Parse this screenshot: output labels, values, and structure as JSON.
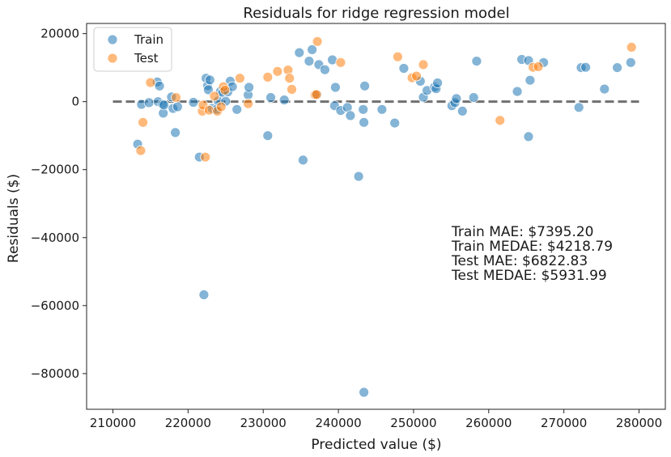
{
  "chart_data": {
    "type": "scatter",
    "title": "Residuals for ridge regression model",
    "xlabel": "Predicted value ($)",
    "ylabel": "Residuals ($)",
    "xlim": [
      206500,
      283500
    ],
    "ylim": [
      -90500,
      23000
    ],
    "x_ticks": [
      210000,
      220000,
      230000,
      240000,
      250000,
      260000,
      270000,
      280000
    ],
    "x_tick_labels": [
      "210000",
      "220000",
      "230000",
      "240000",
      "250000",
      "260000",
      "270000",
      "280000"
    ],
    "y_ticks": [
      20000,
      0,
      -20000,
      -40000,
      -60000,
      -80000
    ],
    "y_tick_labels": [
      "20000",
      "0",
      "−20000",
      "−40000",
      "−60000",
      "−80000"
    ],
    "grid": false,
    "legend_position": "top-left",
    "zero_line": {
      "y": 0,
      "x_range": [
        210000,
        280000
      ],
      "style": "dashed",
      "color": "#707070"
    },
    "series": [
      {
        "name": "Train",
        "color": "#1f77b4",
        "points": [
          [
            213300,
            -12500
          ],
          [
            213800,
            -800
          ],
          [
            214800,
            -300
          ],
          [
            215900,
            5800
          ],
          [
            216200,
            4600
          ],
          [
            216000,
            0
          ],
          [
            216600,
            -800
          ],
          [
            216700,
            -3400
          ],
          [
            216800,
            -1000
          ],
          [
            217800,
            1400
          ],
          [
            218000,
            -2000
          ],
          [
            218300,
            -9100
          ],
          [
            218600,
            -1500
          ],
          [
            220700,
            -200
          ],
          [
            221500,
            -16300
          ],
          [
            222100,
            -56800
          ],
          [
            222400,
            6900
          ],
          [
            222600,
            4700
          ],
          [
            222700,
            3500
          ],
          [
            222900,
            6400
          ],
          [
            223200,
            -2000
          ],
          [
            223800,
            -2300
          ],
          [
            224000,
            200
          ],
          [
            224300,
            3000
          ],
          [
            224600,
            2700
          ],
          [
            225000,
            100
          ],
          [
            225300,
            2900
          ],
          [
            225600,
            6000
          ],
          [
            225900,
            4400
          ],
          [
            226500,
            -2300
          ],
          [
            228000,
            2000
          ],
          [
            228100,
            4200
          ],
          [
            230600,
            -10000
          ],
          [
            231000,
            1200
          ],
          [
            232800,
            500
          ],
          [
            234800,
            14400
          ],
          [
            235300,
            -17200
          ],
          [
            236100,
            11900
          ],
          [
            236500,
            15300
          ],
          [
            237100,
            2000
          ],
          [
            237400,
            10900
          ],
          [
            238200,
            9400
          ],
          [
            239200,
            12300
          ],
          [
            239600,
            4200
          ],
          [
            239500,
            -1200
          ],
          [
            240300,
            -2600
          ],
          [
            241200,
            -1700
          ],
          [
            241600,
            -4100
          ],
          [
            242700,
            -22000
          ],
          [
            243300,
            -2300
          ],
          [
            243400,
            -6100
          ],
          [
            243500,
            4600
          ],
          [
            243400,
            -85500
          ],
          [
            245800,
            -2300
          ],
          [
            247500,
            -6300
          ],
          [
            248700,
            9800
          ],
          [
            250900,
            6000
          ],
          [
            251300,
            1300
          ],
          [
            251800,
            3300
          ],
          [
            252800,
            4300
          ],
          [
            253000,
            3800
          ],
          [
            253200,
            5500
          ],
          [
            255100,
            -1200
          ],
          [
            255500,
            -300
          ],
          [
            255700,
            900
          ],
          [
            256500,
            -2800
          ],
          [
            258000,
            1200
          ],
          [
            258400,
            11900
          ],
          [
            263800,
            3000
          ],
          [
            264400,
            12400
          ],
          [
            265300,
            12100
          ],
          [
            265500,
            6300
          ],
          [
            265300,
            -10300
          ],
          [
            267300,
            11500
          ],
          [
            272000,
            -1700
          ],
          [
            272300,
            10000
          ],
          [
            272900,
            10100
          ],
          [
            275400,
            3700
          ],
          [
            277100,
            10000
          ],
          [
            278900,
            11500
          ]
        ]
      },
      {
        "name": "Test",
        "color": "#ff7f0e",
        "points": [
          [
            213700,
            -14400
          ],
          [
            214000,
            -6100
          ],
          [
            215000,
            5600
          ],
          [
            218400,
            1200
          ],
          [
            221900,
            -2800
          ],
          [
            222000,
            -1000
          ],
          [
            222300,
            -16300
          ],
          [
            222800,
            -2500
          ],
          [
            223500,
            1600
          ],
          [
            223900,
            -2800
          ],
          [
            224400,
            -1500
          ],
          [
            224700,
            4400
          ],
          [
            224900,
            3400
          ],
          [
            226900,
            6900
          ],
          [
            228000,
            -600
          ],
          [
            230600,
            7200
          ],
          [
            231900,
            8900
          ],
          [
            233300,
            9300
          ],
          [
            233500,
            6900
          ],
          [
            233800,
            3600
          ],
          [
            236900,
            2000
          ],
          [
            237100,
            2100
          ],
          [
            237200,
            17700
          ],
          [
            240300,
            11500
          ],
          [
            247900,
            13200
          ],
          [
            249800,
            7000
          ],
          [
            250400,
            7500
          ],
          [
            251300,
            10900
          ],
          [
            261500,
            -5500
          ],
          [
            265900,
            10100
          ],
          [
            266600,
            10300
          ],
          [
            279000,
            16000
          ]
        ]
      }
    ],
    "annotations": [
      "Train MAE: $7395.20",
      "Train MEDAE: $4218.79",
      "Test MAE: $6822.83",
      "Test MEDAE: $5931.99"
    ]
  }
}
